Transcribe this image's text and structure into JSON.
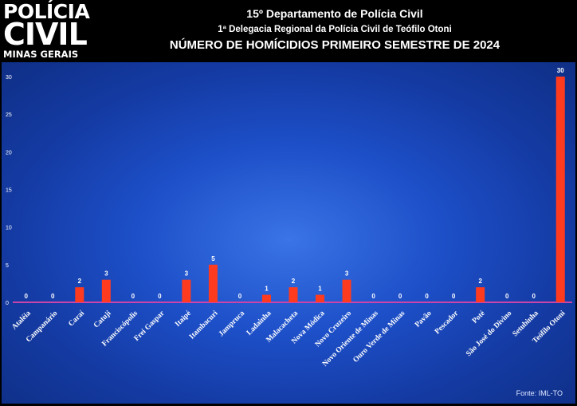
{
  "logo": {
    "line1": "POLÍCIA",
    "line2": "CIVIL",
    "line3": "MINAS GERAIS"
  },
  "header": {
    "title1": "15º Departamento de Polícia Civil",
    "title2": "1ª Delegacia Regional da Polícia Civil de Teófilo Otoni",
    "title3": "NÚMERO DE HOMÍCIDIOS PRIMEIRO SEMESTRE DE 2024"
  },
  "source": "Fonte: IML-TO",
  "colors": {
    "bar": "#ff3b1f",
    "axis": "#cc44aa",
    "text": "#ffffff"
  },
  "chart_data": {
    "type": "bar",
    "categories": [
      "Ataléia",
      "Campanário",
      "Caraí",
      "Catuji",
      "Franciscópolis",
      "Frei Gaspar",
      "Itaipé",
      "Itambacuri",
      "Jampruca",
      "Ladainha",
      "Malacacheta",
      "Nova Módica",
      "Novo Cruzeiro",
      "Novo Oriente de Minas",
      "Ouro Verde de Minas",
      "Pavão",
      "Pescador",
      "Poté",
      "São José do Divino",
      "Setubinha",
      "Teófilo Otoni"
    ],
    "values": [
      0,
      0,
      2,
      3,
      0,
      0,
      3,
      5,
      0,
      1,
      2,
      1,
      3,
      0,
      0,
      0,
      0,
      2,
      0,
      0,
      30
    ],
    "yticks": [
      0,
      5,
      10,
      15,
      20,
      25,
      30
    ],
    "ylim": [
      0,
      30
    ],
    "grid": false,
    "legend": "none",
    "data_labels": true
  }
}
